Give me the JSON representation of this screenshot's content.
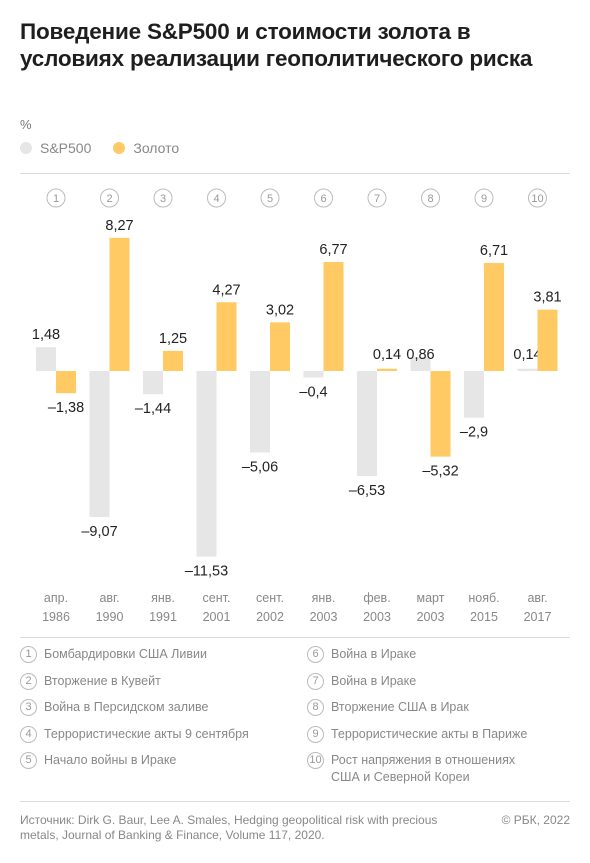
{
  "title": "Поведение S&P500 и стоимости золота в условиях реализации геополитического риска",
  "unit": "%",
  "legend": [
    {
      "name": "S&P500",
      "color": "#e6e6e6"
    },
    {
      "name": "Золото",
      "color": "#ffca64"
    }
  ],
  "chart_data": {
    "type": "bar",
    "event_numbers": [
      "1",
      "2",
      "3",
      "4",
      "5",
      "6",
      "7",
      "8",
      "9",
      "10"
    ],
    "categories": [
      [
        "апр.",
        "1986"
      ],
      [
        "авг.",
        "1990"
      ],
      [
        "янв.",
        "1991"
      ],
      [
        "сент.",
        "2001"
      ],
      [
        "сент.",
        "2002"
      ],
      [
        "янв.",
        "2003"
      ],
      [
        "фев.",
        "2003"
      ],
      [
        "март",
        "2003"
      ],
      [
        "нояб.",
        "2015"
      ],
      [
        "авг.",
        "2017"
      ]
    ],
    "series": [
      {
        "name": "S&P500",
        "color": "#e6e6e6",
        "values": [
          1.48,
          -9.07,
          -1.44,
          -11.53,
          -5.06,
          -0.4,
          -6.53,
          0.86,
          -2.9,
          0.14
        ],
        "labels": [
          "1,48",
          "–9,07",
          "–1,44",
          "–11,53",
          "–5,06",
          "–0,4",
          "–6,53",
          "0,86",
          "–2,9",
          "0,14"
        ]
      },
      {
        "name": "Золото",
        "color": "#ffca64",
        "values": [
          -1.38,
          8.27,
          1.25,
          4.27,
          3.02,
          6.77,
          0.14,
          -5.32,
          6.71,
          3.81
        ],
        "labels": [
          "–1,38",
          "8,27",
          "1,25",
          "4,27",
          "3,02",
          "6,77",
          "0,14",
          "–5,32",
          "6,71",
          "3,81"
        ]
      }
    ],
    "ylim": [
      -11.53,
      8.27
    ],
    "grid": false
  },
  "events": [
    {
      "num": "1",
      "text": "Бомбардировки США Ливии"
    },
    {
      "num": "2",
      "text": "Вторжение в Кувейт"
    },
    {
      "num": "3",
      "text": "Война в Персидском заливе"
    },
    {
      "num": "4",
      "text": "Террористические акты 9 сентября"
    },
    {
      "num": "5",
      "text": "Начало войны в Ираке"
    },
    {
      "num": "6",
      "text": "Война в Ираке"
    },
    {
      "num": "7",
      "text": "Война в Ираке"
    },
    {
      "num": "8",
      "text": "Вторжение США в Ирак"
    },
    {
      "num": "9",
      "text": "Террористические акты в Париже"
    },
    {
      "num": "10",
      "text": "Рост напряжения в отношениях США и Северной Кореи"
    }
  ],
  "source": "Источник: Dirk G. Baur, Lee A. Smales, Hedging geopolitical risk with precious metals, Journal of Banking & Finance, Volume 117, 2020.",
  "copyright": "© РБК, 2022"
}
